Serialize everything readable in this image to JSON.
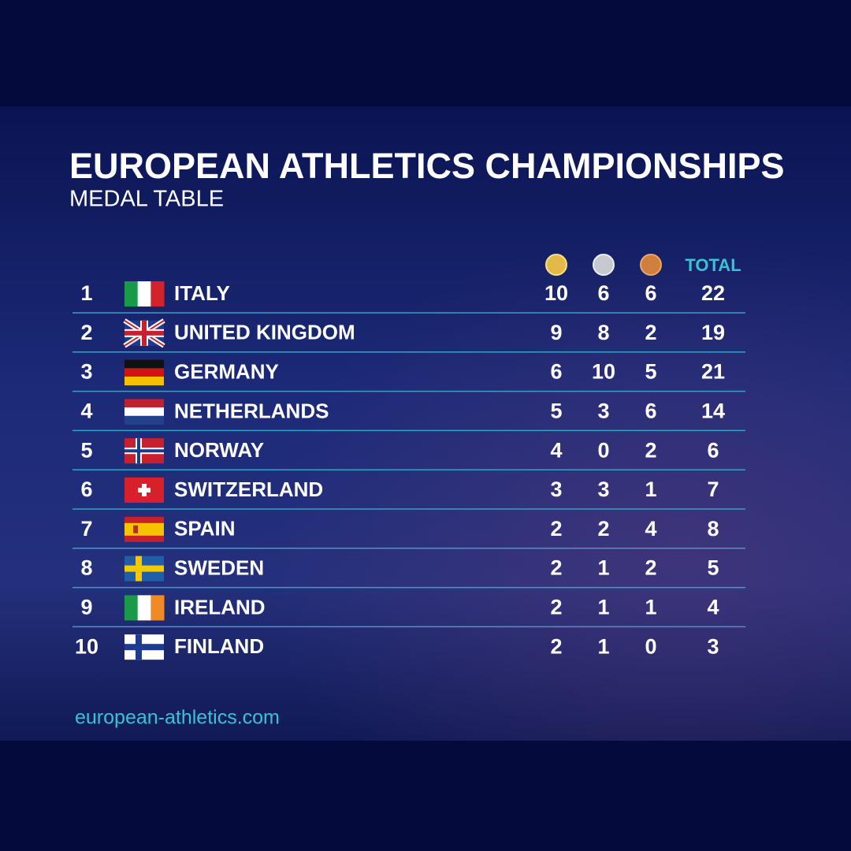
{
  "header": {
    "title": "EUROPEAN ATHLETICS CHAMPIONSHIPS",
    "subtitle": "MEDAL TABLE"
  },
  "table": {
    "total_label": "TOTAL",
    "rows": [
      {
        "rank": 1,
        "country": "ITALY",
        "gold": 10,
        "silver": 6,
        "bronze": 6,
        "total": 22
      },
      {
        "rank": 2,
        "country": "UNITED KINGDOM",
        "gold": 9,
        "silver": 8,
        "bronze": 2,
        "total": 19
      },
      {
        "rank": 3,
        "country": "GERMANY",
        "gold": 6,
        "silver": 10,
        "bronze": 5,
        "total": 21
      },
      {
        "rank": 4,
        "country": "NETHERLANDS",
        "gold": 5,
        "silver": 3,
        "bronze": 6,
        "total": 14
      },
      {
        "rank": 5,
        "country": "NORWAY",
        "gold": 4,
        "silver": 0,
        "bronze": 2,
        "total": 6
      },
      {
        "rank": 6,
        "country": "SWITZERLAND",
        "gold": 3,
        "silver": 3,
        "bronze": 1,
        "total": 7
      },
      {
        "rank": 7,
        "country": "SPAIN",
        "gold": 2,
        "silver": 2,
        "bronze": 4,
        "total": 8
      },
      {
        "rank": 8,
        "country": "SWEDEN",
        "gold": 2,
        "silver": 1,
        "bronze": 2,
        "total": 5
      },
      {
        "rank": 9,
        "country": "IRELAND",
        "gold": 2,
        "silver": 1,
        "bronze": 1,
        "total": 4
      },
      {
        "rank": 10,
        "country": "FINLAND",
        "gold": 2,
        "silver": 1,
        "bronze": 0,
        "total": 3
      }
    ]
  },
  "footer": {
    "website": "european-athletics.com"
  }
}
